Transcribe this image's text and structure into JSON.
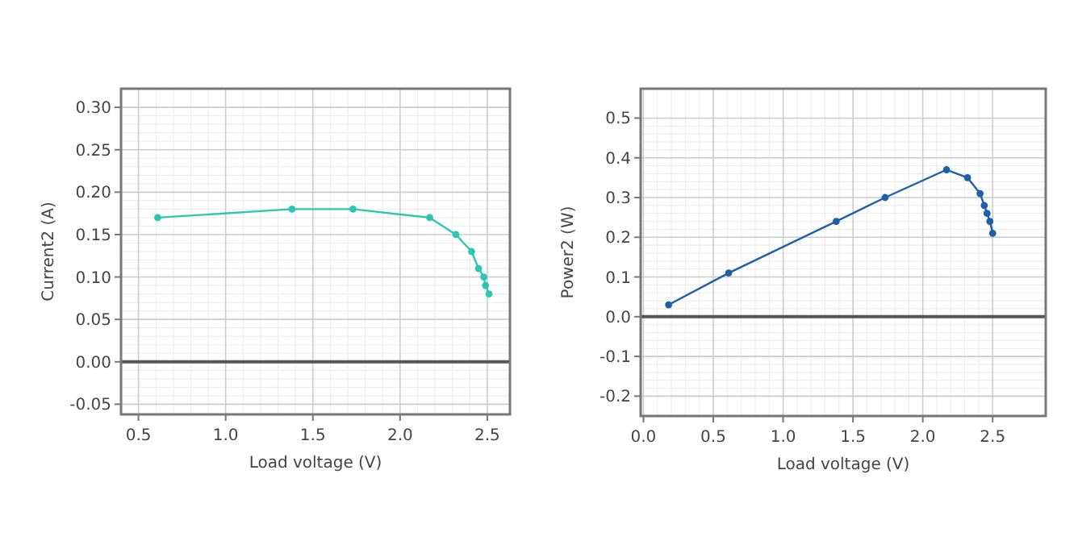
{
  "chart_data": [
    {
      "type": "line",
      "xlabel": "Load voltage (V)",
      "ylabel": "Current2 (A)",
      "marker": "circle",
      "grid": true,
      "series": [
        {
          "color": "#2ec4b6",
          "x": [
            0.61,
            1.38,
            1.73,
            2.17,
            2.32,
            2.41,
            2.45,
            2.48,
            2.49,
            2.51
          ],
          "values": [
            0.17,
            0.18,
            0.18,
            0.17,
            0.15,
            0.13,
            0.11,
            0.1,
            0.09,
            0.08
          ]
        }
      ],
      "xlim": [
        0.4,
        2.63
      ],
      "xticks": [
        {
          "value": 0.5,
          "label": "0.5"
        },
        {
          "value": 1,
          "label": "1.0"
        },
        {
          "value": 1.5,
          "label": "1.5"
        },
        {
          "value": 2,
          "label": "2.0"
        },
        {
          "value": 2.5,
          "label": "2.5"
        }
      ],
      "ylim": [
        -0.062,
        0.322
      ],
      "yticks": [
        {
          "value": -0.05,
          "label": "-0.05"
        },
        {
          "value": 0,
          "label": "0.00"
        },
        {
          "value": 0.05,
          "label": "0.05"
        },
        {
          "value": 0.1,
          "label": "0.10"
        },
        {
          "value": 0.15,
          "label": "0.15"
        },
        {
          "value": 0.2,
          "label": "0.20"
        },
        {
          "value": 0.25,
          "label": "0.25"
        },
        {
          "value": 0.3,
          "label": "0.30"
        }
      ],
      "ref_lines": [
        {
          "axis": "y",
          "value": 0,
          "color": "#555555"
        }
      ]
    },
    {
      "type": "line",
      "xlabel": "Load voltage (V)",
      "ylabel": "Power2 (W)",
      "marker": "circle",
      "grid": true,
      "series": [
        {
          "color": "#1f5fa8",
          "x": [
            0.18,
            0.61,
            1.38,
            1.73,
            2.17,
            2.32,
            2.41,
            2.44,
            2.46,
            2.48,
            2.5
          ],
          "values": [
            0.03,
            0.11,
            0.24,
            0.3,
            0.37,
            0.35,
            0.31,
            0.28,
            0.26,
            0.24,
            0.21
          ]
        }
      ],
      "xlim": [
        -0.02,
        2.88
      ],
      "xticks": [
        {
          "value": 0,
          "label": "0.0"
        },
        {
          "value": 0.5,
          "label": "0.5"
        },
        {
          "value": 1,
          "label": "1.0"
        },
        {
          "value": 1.5,
          "label": "1.5"
        },
        {
          "value": 2,
          "label": "2.0"
        },
        {
          "value": 2.5,
          "label": "2.5"
        }
      ],
      "ylim": [
        -0.25,
        0.574
      ],
      "yticks": [
        {
          "value": -0.2,
          "label": "-0.2"
        },
        {
          "value": -0.1,
          "label": "-0.1"
        },
        {
          "value": 0,
          "label": "0.0"
        },
        {
          "value": 0.1,
          "label": "0.1"
        },
        {
          "value": 0.2,
          "label": "0.2"
        },
        {
          "value": 0.3,
          "label": "0.3"
        },
        {
          "value": 0.4,
          "label": "0.4"
        },
        {
          "value": 0.5,
          "label": "0.5"
        }
      ],
      "ref_lines": [
        {
          "axis": "y",
          "value": 0,
          "color": "#555555"
        }
      ]
    }
  ]
}
